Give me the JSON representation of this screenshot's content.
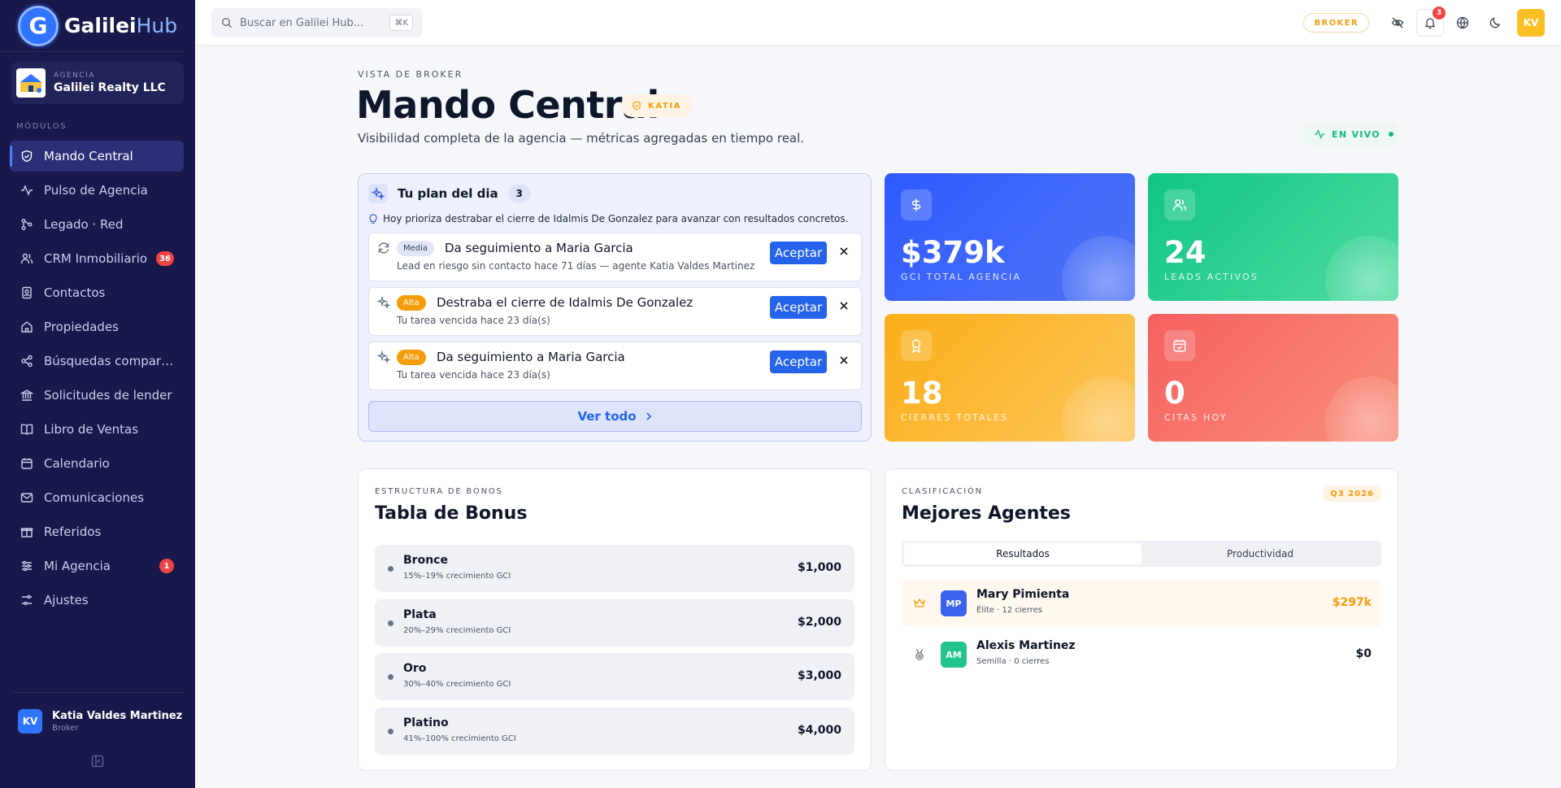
{
  "brand": {
    "name_main": "Galilei",
    "name_accent": "Hub",
    "logo_letter": "G"
  },
  "agency": {
    "label": "AGENCIA",
    "name": "Galilei Realty LLC"
  },
  "sidebar": {
    "section_label": "MÓDULOS",
    "items": [
      {
        "label": "Mando Central",
        "icon": "shield-check-icon",
        "active": true
      },
      {
        "label": "Pulso de Agencia",
        "icon": "activity-icon"
      },
      {
        "label": "Legado · Red",
        "icon": "network-icon"
      },
      {
        "label": "CRM Inmobiliario",
        "icon": "users-icon",
        "badge": "36"
      },
      {
        "label": "Contactos",
        "icon": "contacts-icon"
      },
      {
        "label": "Propiedades",
        "icon": "home-icon"
      },
      {
        "label": "Búsquedas compartidas",
        "icon": "share-icon"
      },
      {
        "label": "Solicitudes de lender",
        "icon": "bank-icon"
      },
      {
        "label": "Libro de Ventas",
        "icon": "book-icon"
      },
      {
        "label": "Calendario",
        "icon": "calendar-icon"
      },
      {
        "label": "Comunicaciones",
        "icon": "mail-icon"
      },
      {
        "label": "Referidos",
        "icon": "gift-icon"
      },
      {
        "label": "Mi Agencia",
        "icon": "sliders-icon",
        "badge": "1"
      },
      {
        "label": "Ajustes",
        "icon": "settings-icon"
      }
    ]
  },
  "user": {
    "initials": "KV",
    "name": "Katia Valdes Martinez",
    "role": "Broker"
  },
  "topbar": {
    "search_placeholder": "Buscar en Galilei Hub...",
    "search_shortcut": "⌘K",
    "role_pill": "BROKER",
    "notification_count": "3",
    "avatar_initials": "KV"
  },
  "header": {
    "eyebrow": "VISTA DE BROKER",
    "title": "Mando Central",
    "user_tag": "KATIA",
    "subtitle": "Visibilidad completa de la agencia — métricas agregadas en tiempo real.",
    "live_label": "EN VIVO"
  },
  "plan": {
    "title": "Tu plan del dia",
    "count": "3",
    "hint": "Hoy prioriza destrabar el cierre de Idalmis De Gonzalez para avanzar con resultados concretos.",
    "accept_label": "Aceptar",
    "see_all": "Ver todo",
    "tasks": [
      {
        "priority": "Media",
        "priority_level": "media",
        "title": "Da seguimiento a Maria Garcia",
        "subtitle": "Lead en riesgo sin contacto hace 71 días — agente Katia Valdes Martinez",
        "icon": "refresh-icon"
      },
      {
        "priority": "Alta",
        "priority_level": "alta",
        "title": "Destraba el cierre de Idalmis De Gonzalez",
        "subtitle": "Tu tarea vencida hace 23 día(s)",
        "icon": "sparkles-icon"
      },
      {
        "priority": "Alta",
        "priority_level": "alta",
        "title": "Da seguimiento a Maria Garcia",
        "subtitle": "Tu tarea vencida hace 23 día(s)",
        "icon": "sparkles-icon"
      }
    ]
  },
  "stats": [
    {
      "value": "$379k",
      "label": "GCI TOTAL AGENCIA",
      "icon": "dollar-icon",
      "color": "#2f5bff"
    },
    {
      "value": "24",
      "label": "LEADS ACTIVOS",
      "icon": "users-icon",
      "color": "#10c685"
    },
    {
      "value": "18",
      "label": "CIERRES TOTALES",
      "icon": "award-icon",
      "color": "#fbae18"
    },
    {
      "value": "0",
      "label": "CITAS HOY",
      "icon": "calendar-check-icon",
      "color": "#f56060"
    }
  ],
  "bonus": {
    "eyebrow": "ESTRUCTURA DE BONOS",
    "title": "Tabla de Bonus",
    "tiers": [
      {
        "name": "Bronce",
        "range": "15%–19% crecimiento GCI",
        "amount": "$1,000"
      },
      {
        "name": "Plata",
        "range": "20%–29% crecimiento GCI",
        "amount": "$2,000"
      },
      {
        "name": "Oro",
        "range": "30%–40% crecimiento GCI",
        "amount": "$3,000"
      },
      {
        "name": "Platino",
        "range": "41%–100% crecimiento GCI",
        "amount": "$4,000"
      }
    ]
  },
  "agents": {
    "eyebrow": "CLASIFICACIÓN",
    "title": "Mejores Agentes",
    "period": "Q3 2026",
    "tabs": [
      "Resultados",
      "Productividad"
    ],
    "list": [
      {
        "initials": "MP",
        "name": "Mary Pimienta",
        "detail": "Élite · 12 cierres",
        "value": "$297k",
        "icon": "crown-icon",
        "color": "#3b63f0"
      },
      {
        "initials": "AM",
        "name": "Alexis Martinez",
        "detail": "Semilla · 0 cierres",
        "value": "$0",
        "icon": "medal-icon",
        "color": "#22c38e"
      }
    ]
  },
  "colors": {
    "sidebar_bg": "#18184a",
    "accent": "#2563eb",
    "warning": "#f59e0b",
    "success": "#10b981",
    "danger": "#ef4444"
  }
}
